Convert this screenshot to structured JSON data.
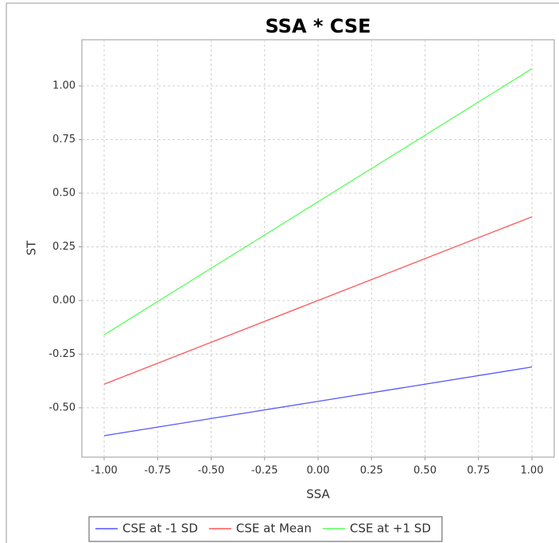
{
  "chart_data": {
    "type": "line",
    "title": "SSA * CSE",
    "x_label": "SSA",
    "y_label": "ST",
    "x": [
      -1,
      1
    ],
    "series": [
      {
        "name": "CSE at -1 SD",
        "color": "#5555ff",
        "values": [
          -0.63,
          -0.31
        ]
      },
      {
        "name": "CSE at Mean",
        "color": "#ff5555",
        "values": [
          -0.39,
          0.39
        ]
      },
      {
        "name": "CSE at +1 SD",
        "color": "#55ff55",
        "values": [
          -0.16,
          1.08
        ]
      }
    ],
    "xlim": [
      -1.104,
      1.104
    ],
    "xticks": [
      {
        "value": -1,
        "label": "-1.00"
      },
      {
        "value": -0.75,
        "label": "-0.75"
      },
      {
        "value": -0.5,
        "label": "-0.50"
      },
      {
        "value": -0.25,
        "label": "-0.25"
      },
      {
        "value": 0,
        "label": "0.00"
      },
      {
        "value": 0.25,
        "label": "0.25"
      },
      {
        "value": 0.5,
        "label": "0.50"
      },
      {
        "value": 0.75,
        "label": "0.75"
      },
      {
        "value": 1,
        "label": "1.00"
      }
    ],
    "ylim": [
      -0.73,
      1.215
    ],
    "yticks": [
      {
        "value": -0.5,
        "label": "-0.50"
      },
      {
        "value": -0.25,
        "label": "-0.25"
      },
      {
        "value": 0,
        "label": "0.00"
      },
      {
        "value": 0.25,
        "label": "0.25"
      },
      {
        "value": 0.5,
        "label": "0.50"
      },
      {
        "value": 0.75,
        "label": "0.75"
      },
      {
        "value": 1,
        "label": "1.00"
      }
    ],
    "grid": true,
    "legend": "bottom"
  }
}
